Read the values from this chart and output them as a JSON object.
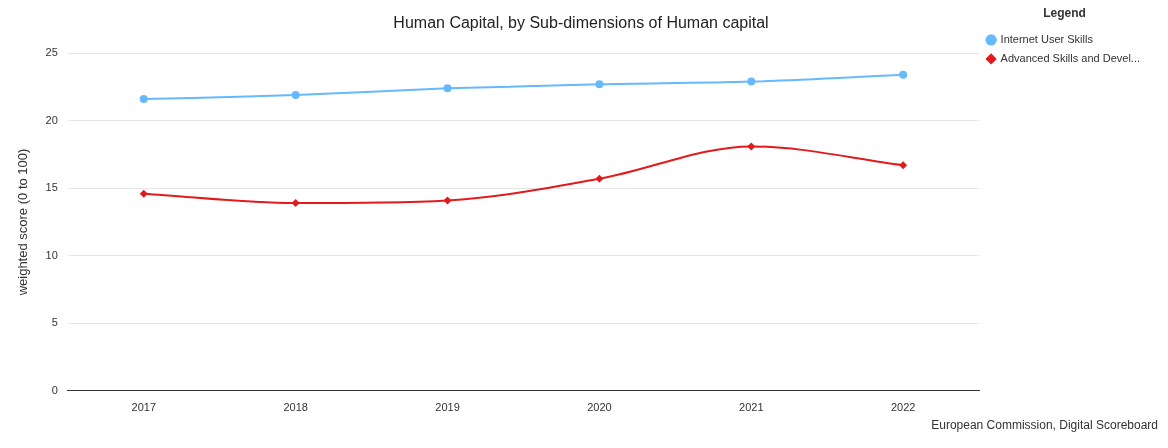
{
  "chart_data": {
    "type": "line",
    "title": "Human Capital, by Sub-dimensions of Human capital",
    "ylabel": "weighted score (0 to 100)",
    "legend_title": "Legend",
    "categories": [
      "2017",
      "2018",
      "2019",
      "2020",
      "2021",
      "2022"
    ],
    "series": [
      {
        "name": "Internet User Skills",
        "color": "#66b8ff",
        "marker": "circle",
        "values": [
          21.6,
          21.9,
          22.4,
          22.7,
          22.9,
          23.4
        ]
      },
      {
        "name": "Advanced Skills and Devel...",
        "color": "#e31a1c",
        "marker": "diamond",
        "values": [
          14.6,
          13.9,
          14.1,
          15.7,
          18.1,
          16.7
        ]
      }
    ],
    "ylim": [
      0,
      25
    ],
    "yticks": [
      0,
      5,
      10,
      15,
      20,
      25
    ],
    "grid": "y",
    "legend": "top right",
    "line_style": "solid",
    "annotations": [
      "European Commission, Digital Scoreboard"
    ]
  }
}
